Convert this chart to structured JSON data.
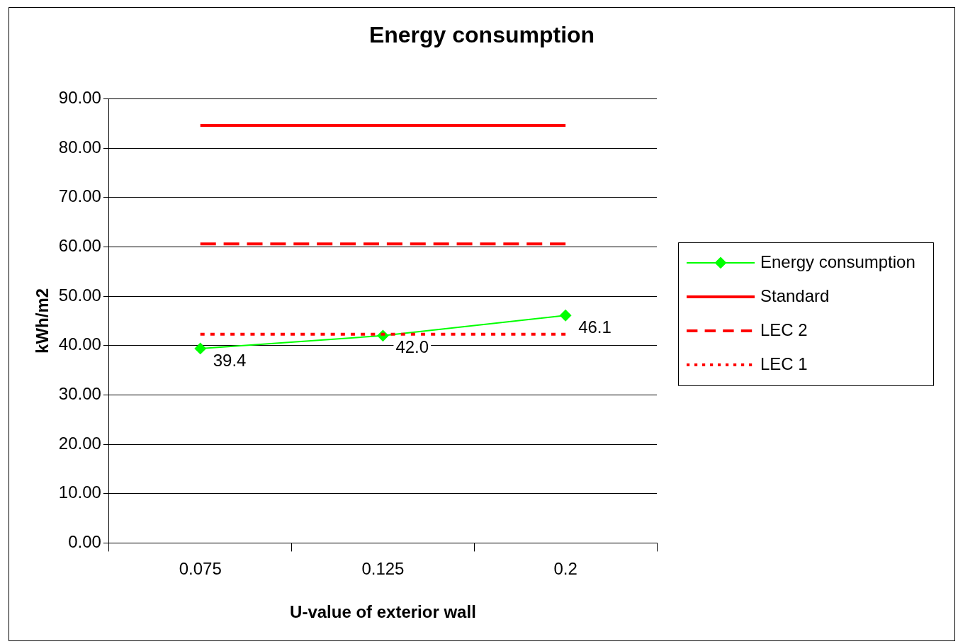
{
  "chart_data": {
    "type": "line",
    "title": "Energy consumption",
    "xlabel": "U-value of exterior wall",
    "ylabel": "kWh/m2",
    "categories": [
      "0.075",
      "0.125",
      "0.2"
    ],
    "series": [
      {
        "name": "Energy consumption",
        "color": "#00ff00",
        "values": [
          39.4,
          42.0,
          46.1
        ],
        "marker": "diamond",
        "line_style": "solid",
        "value_labels": [
          "39.4",
          "42.0",
          "46.1"
        ]
      },
      {
        "name": "Standard",
        "color": "#ff0000",
        "values": [
          84.6,
          84.6,
          84.6
        ],
        "marker": "none",
        "line_style": "solid"
      },
      {
        "name": "LEC 2",
        "color": "#ff0000",
        "values": [
          60.6,
          60.6,
          60.6
        ],
        "marker": "none",
        "line_style": "dashed"
      },
      {
        "name": "LEC 1",
        "color": "#ff0000",
        "values": [
          42.3,
          42.3,
          42.3
        ],
        "marker": "none",
        "line_style": "dotted"
      }
    ],
    "ylim": [
      0,
      90
    ],
    "yticks": [
      {
        "value": 0,
        "label": "0.00"
      },
      {
        "value": 10,
        "label": "10.00"
      },
      {
        "value": 20,
        "label": "20.00"
      },
      {
        "value": 30,
        "label": "30.00"
      },
      {
        "value": 40,
        "label": "40.00"
      },
      {
        "value": 50,
        "label": "50.00"
      },
      {
        "value": 60,
        "label": "60.00"
      },
      {
        "value": 70,
        "label": "70.00"
      },
      {
        "value": 80,
        "label": "80.00"
      },
      {
        "value": 90,
        "label": "90.00"
      }
    ],
    "grid": "y",
    "legend": "right"
  }
}
